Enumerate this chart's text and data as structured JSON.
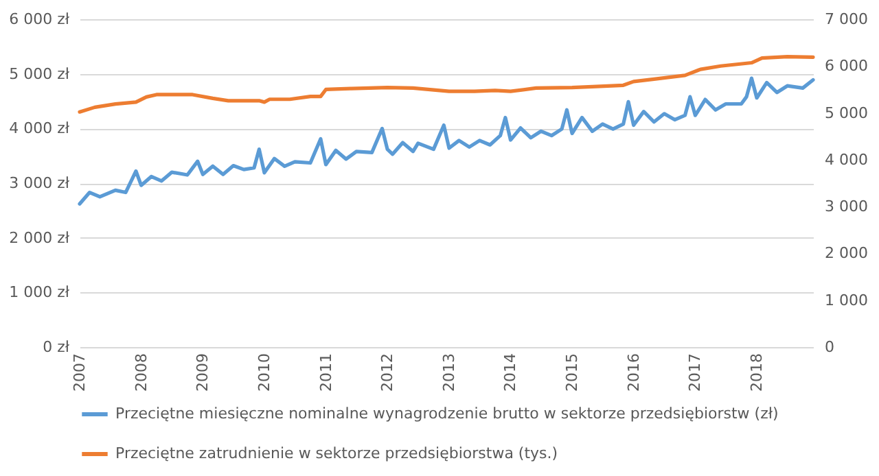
{
  "chart_data": {
    "type": "line",
    "xlim": [
      "2007-01",
      "2018-12"
    ],
    "xticks": [
      "2007",
      "2008",
      "2009",
      "2010",
      "2011",
      "2012",
      "2013",
      "2014",
      "2015",
      "2016",
      "2017",
      "2018"
    ],
    "ylim": [
      0,
      6000
    ],
    "yticks": [
      {
        "value": 0,
        "label": "0 zł"
      },
      {
        "value": 1000,
        "label": "1 000 zł"
      },
      {
        "value": 2000,
        "label": "2 000 zł"
      },
      {
        "value": 3000,
        "label": "3 000 zł"
      },
      {
        "value": 4000,
        "label": "4 000 zł"
      },
      {
        "value": 5000,
        "label": "5 000 zł"
      },
      {
        "value": 6000,
        "label": "6 000 zł"
      }
    ],
    "y2lim": [
      0,
      7000
    ],
    "y2ticks": [
      0,
      {
        "value": 1000,
        "label": "1 000"
      },
      {
        "value": 2000,
        "label": "2 000"
      },
      {
        "value": 3000,
        "label": "3 000"
      },
      {
        "value": 4000,
        "label": "4 000"
      },
      {
        "value": 5000,
        "label": "5 000"
      },
      {
        "value": 6000,
        "label": "6 000"
      },
      {
        "value": 7000,
        "label": "7 000"
      }
    ],
    "grid": "y",
    "legend": "bottom",
    "line_style": "solid",
    "series": [
      {
        "name": "Przeciętne miesięczne nominalne wynagrodzenie brutto w sektorze przedsiębiorstw (zł)",
        "color": "#5b9bd5",
        "x": [
          "2007-01",
          "2007-03",
          "2007-05",
          "2007-08",
          "2007-10",
          "2007-12",
          "2008-01",
          "2008-03",
          "2008-05",
          "2008-07",
          "2008-10",
          "2008-12",
          "2009-01",
          "2009-03",
          "2009-05",
          "2009-07",
          "2009-09",
          "2009-11",
          "2009-12",
          "2010-01",
          "2010-03",
          "2010-05",
          "2010-07",
          "2010-10",
          "2010-12",
          "2011-01",
          "2011-03",
          "2011-05",
          "2011-07",
          "2011-10",
          "2011-12",
          "2012-01",
          "2012-02",
          "2012-04",
          "2012-06",
          "2012-07",
          "2012-10",
          "2012-12",
          "2013-01",
          "2013-03",
          "2013-05",
          "2013-07",
          "2013-09",
          "2013-11",
          "2013-12",
          "2014-01",
          "2014-03",
          "2014-05",
          "2014-07",
          "2014-09",
          "2014-11",
          "2014-12",
          "2015-01",
          "2015-03",
          "2015-05",
          "2015-07",
          "2015-09",
          "2015-11",
          "2015-12",
          "2016-01",
          "2016-03",
          "2016-05",
          "2016-07",
          "2016-09",
          "2016-11",
          "2016-12",
          "2017-01",
          "2017-03",
          "2017-05",
          "2017-07",
          "2017-10",
          "2017-11",
          "2017-12",
          "2018-01",
          "2018-03",
          "2018-05",
          "2018-07",
          "2018-10",
          "2018-12"
        ],
        "values": [
          2620,
          2830,
          2750,
          2870,
          2830,
          3220,
          2960,
          3120,
          3040,
          3200,
          3150,
          3400,
          3160,
          3310,
          3160,
          3320,
          3250,
          3280,
          3620,
          3190,
          3450,
          3310,
          3390,
          3370,
          3810,
          3340,
          3600,
          3440,
          3580,
          3560,
          4000,
          3620,
          3530,
          3740,
          3580,
          3730,
          3620,
          4060,
          3640,
          3780,
          3660,
          3780,
          3700,
          3870,
          4200,
          3790,
          4010,
          3830,
          3950,
          3870,
          3990,
          4340,
          3910,
          4200,
          3950,
          4080,
          3990,
          4080,
          4490,
          4060,
          4310,
          4120,
          4270,
          4160,
          4240,
          4580,
          4240,
          4530,
          4340,
          4450,
          4450,
          4580,
          4920,
          4560,
          4840,
          4660,
          4780,
          4740,
          4890
        ]
      },
      {
        "name": "Przeciętne zatrudnienie w sektorze przedsiębiorstwa (tys.)",
        "color": "#ed7d31",
        "axis": "y2",
        "x": [
          "2007-01",
          "2007-04",
          "2007-08",
          "2007-12",
          "2008-02",
          "2008-04",
          "2008-11",
          "2009-03",
          "2009-06",
          "2009-12",
          "2010-01",
          "2010-02",
          "2010-06",
          "2010-10",
          "2010-12",
          "2011-01",
          "2011-06",
          "2012-01",
          "2012-06",
          "2013-01",
          "2013-06",
          "2013-10",
          "2014-01",
          "2014-06",
          "2015-01",
          "2015-05",
          "2015-11",
          "2016-01",
          "2016-05",
          "2016-11",
          "2017-02",
          "2017-06",
          "2017-12",
          "2018-02",
          "2018-07",
          "2018-12"
        ],
        "values": [
          5020,
          5120,
          5190,
          5230,
          5340,
          5390,
          5390,
          5310,
          5260,
          5260,
          5230,
          5290,
          5290,
          5350,
          5350,
          5500,
          5520,
          5540,
          5530,
          5460,
          5460,
          5480,
          5460,
          5530,
          5540,
          5560,
          5590,
          5670,
          5720,
          5800,
          5930,
          6000,
          6070,
          6170,
          6200,
          6190
        ]
      }
    ]
  }
}
